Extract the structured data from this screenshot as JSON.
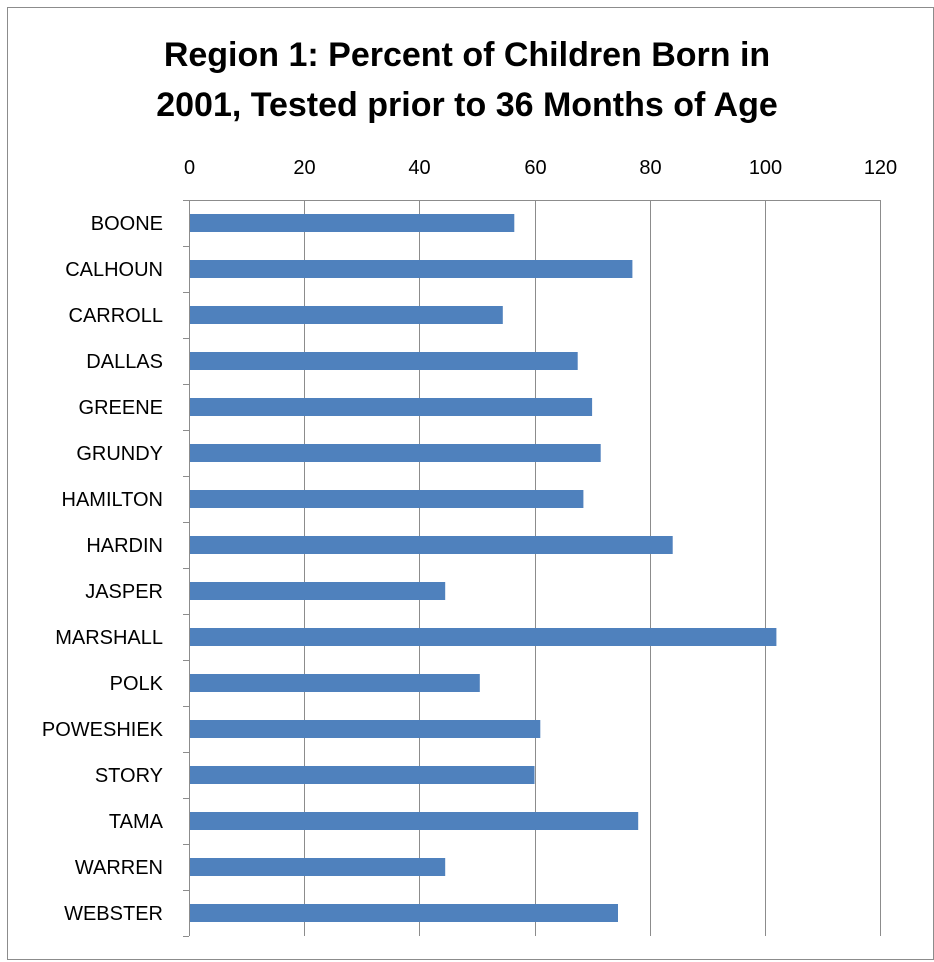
{
  "chart_data": {
    "type": "bar",
    "orientation": "horizontal",
    "title_lines": [
      "Region 1: Percent of Children Born in",
      "2001, Tested prior to 36 Months of Age"
    ],
    "xlabel": "",
    "ylabel": "",
    "xlim": [
      0,
      120
    ],
    "x_ticks": [
      0,
      20,
      40,
      60,
      80,
      100,
      120
    ],
    "x_axis_position": "top",
    "grid": "vertical",
    "legend": "none",
    "bar_color": "#4f81bd",
    "categories": [
      "BOONE",
      "CALHOUN",
      "CARROLL",
      "DALLAS",
      "GREENE",
      "GRUNDY",
      "HAMILTON",
      "HARDIN",
      "JASPER",
      "MARSHALL",
      "POLK",
      "POWESHIEK",
      "STORY",
      "TAMA",
      "WARREN",
      "WEBSTER"
    ],
    "values": [
      56.5,
      77,
      54.5,
      67.5,
      70,
      71.5,
      68.5,
      84,
      44.5,
      102,
      50.5,
      61,
      60,
      78,
      44.5,
      74.5
    ]
  }
}
